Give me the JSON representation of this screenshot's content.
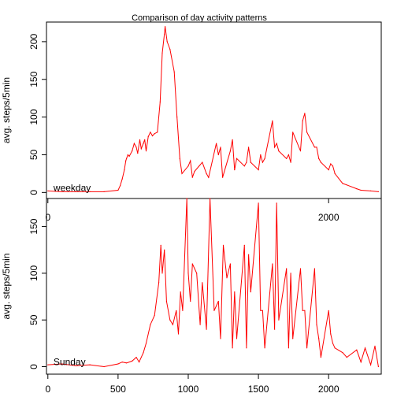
{
  "title": "Comparison of day activity patterns",
  "chart_data": [
    {
      "type": "line",
      "label": "weekday",
      "ylabel": "avg. steps/5min",
      "xlim": [
        -10,
        2375
      ],
      "ylim": [
        -8,
        226
      ],
      "x_ticks": [
        0,
        2000
      ],
      "y_ticks": [
        0,
        50,
        100,
        150,
        200
      ],
      "color": "#ff0000",
      "series": [
        {
          "x": [
            0,
            100,
            200,
            300,
            400,
            500,
            515,
            530,
            545,
            555,
            560,
            570,
            580,
            600,
            615,
            630,
            640,
            655,
            665,
            680,
            690,
            700,
            715,
            730,
            745,
            760,
            780,
            800,
            815,
            830,
            835,
            850,
            870,
            900,
            920,
            940,
            955,
            1000,
            1015,
            1030,
            1045,
            1100,
            1130,
            1145,
            1200,
            1215,
            1230,
            1245,
            1300,
            1315,
            1330,
            1345,
            1400,
            1415,
            1430,
            1445,
            1500,
            1515,
            1530,
            1545,
            1600,
            1615,
            1630,
            1645,
            1700,
            1715,
            1730,
            1745,
            1800,
            1815,
            1830,
            1845,
            1900,
            1915,
            1930,
            1945,
            2000,
            2015,
            2030,
            2045,
            2100,
            2130,
            2200,
            2230,
            2300,
            2355
          ],
          "y": [
            2,
            1,
            1,
            1,
            1,
            3,
            9,
            18,
            30,
            42,
            45,
            50,
            48,
            55,
            65,
            60,
            52,
            70,
            58,
            65,
            70,
            55,
            74,
            80,
            75,
            78,
            80,
            120,
            185,
            210,
            220,
            200,
            190,
            160,
            100,
            45,
            25,
            35,
            42,
            20,
            28,
            40,
            25,
            20,
            65,
            50,
            60,
            20,
            55,
            70,
            30,
            45,
            35,
            40,
            60,
            40,
            30,
            50,
            40,
            45,
            95,
            60,
            65,
            55,
            45,
            50,
            40,
            80,
            55,
            95,
            105,
            80,
            60,
            60,
            45,
            40,
            30,
            38,
            35,
            25,
            12,
            10,
            5,
            3,
            2,
            1
          ]
        }
      ]
    },
    {
      "type": "line",
      "label": "Sunday",
      "ylabel": "avg. steps/5min",
      "xlim": [
        -10,
        2375
      ],
      "ylim": [
        -8,
        180
      ],
      "x_ticks": [
        0,
        500,
        1000,
        1500,
        2000
      ],
      "y_ticks": [
        0,
        50,
        100,
        150
      ],
      "color": "#ff0000",
      "series": [
        {
          "x": [
            0,
            100,
            200,
            300,
            400,
            500,
            530,
            560,
            600,
            630,
            650,
            680,
            700,
            730,
            760,
            790,
            805,
            815,
            830,
            845,
            870,
            890,
            915,
            930,
            945,
            960,
            990,
            1000,
            1015,
            1030,
            1060,
            1085,
            1100,
            1130,
            1155,
            1185,
            1215,
            1230,
            1250,
            1275,
            1300,
            1315,
            1330,
            1345,
            1400,
            1415,
            1430,
            1445,
            1500,
            1515,
            1530,
            1545,
            1600,
            1615,
            1630,
            1645,
            1700,
            1715,
            1730,
            1745,
            1800,
            1815,
            1830,
            1845,
            1900,
            1915,
            1930,
            1945,
            2000,
            2015,
            2030,
            2045,
            2100,
            2130,
            2200,
            2230,
            2260,
            2300,
            2330,
            2355
          ],
          "y": [
            2,
            3,
            1,
            2,
            0,
            3,
            5,
            4,
            6,
            10,
            5,
            15,
            25,
            45,
            55,
            90,
            130,
            100,
            125,
            70,
            50,
            45,
            60,
            35,
            80,
            60,
            180,
            100,
            70,
            110,
            100,
            45,
            90,
            40,
            180,
            60,
            70,
            30,
            130,
            95,
            110,
            20,
            80,
            30,
            130,
            20,
            120,
            80,
            175,
            60,
            60,
            20,
            110,
            40,
            175,
            50,
            105,
            20,
            100,
            30,
            105,
            60,
            60,
            20,
            105,
            45,
            30,
            10,
            60,
            35,
            25,
            20,
            15,
            10,
            18,
            5,
            20,
            2,
            22,
            0
          ]
        }
      ]
    }
  ]
}
